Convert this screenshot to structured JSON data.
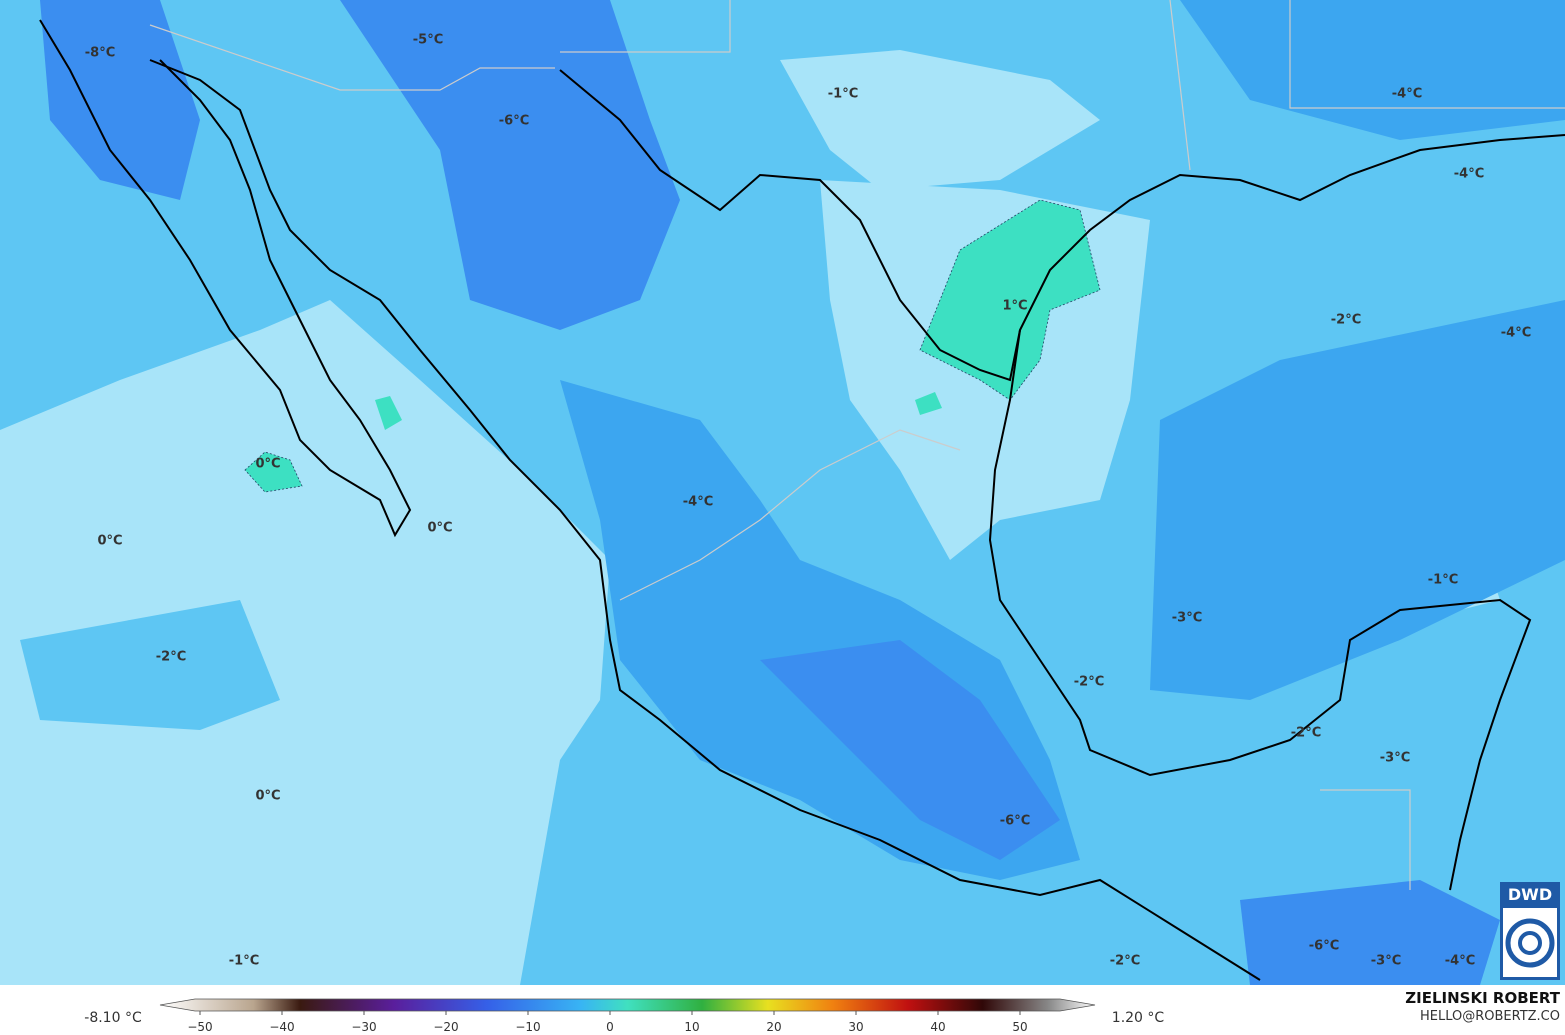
{
  "map_labels": [
    "-8°C",
    "-5°C",
    "-6°C",
    "-1°C",
    "-4°C",
    "-4°C",
    "-2°C",
    "-4°C",
    "1°C",
    "0°C",
    "0°C",
    "0°C",
    "-4°C",
    "-1°C",
    "-3°C",
    "-2°C",
    "-2°C",
    "-2°C",
    "-3°C",
    "0°C",
    "-6°C",
    "-1°C",
    "-2°C",
    "-6°C",
    "-3°C",
    "-4°C"
  ],
  "colorbar": {
    "min_label": "-8.10 °C",
    "max_label": "1.20 °C",
    "ticks": [
      {
        "value": -50,
        "label": "−50"
      },
      {
        "value": -40,
        "label": "−40"
      },
      {
        "value": -30,
        "label": "−30"
      },
      {
        "value": -20,
        "label": "−20"
      },
      {
        "value": -10,
        "label": "−10"
      },
      0,
      10,
      20,
      30,
      40,
      50
    ]
  },
  "credits": {
    "author": "ZIELINSKI ROBERT",
    "contact": "HELLO@ROBERTZ.CO",
    "logo": "DWD"
  }
}
